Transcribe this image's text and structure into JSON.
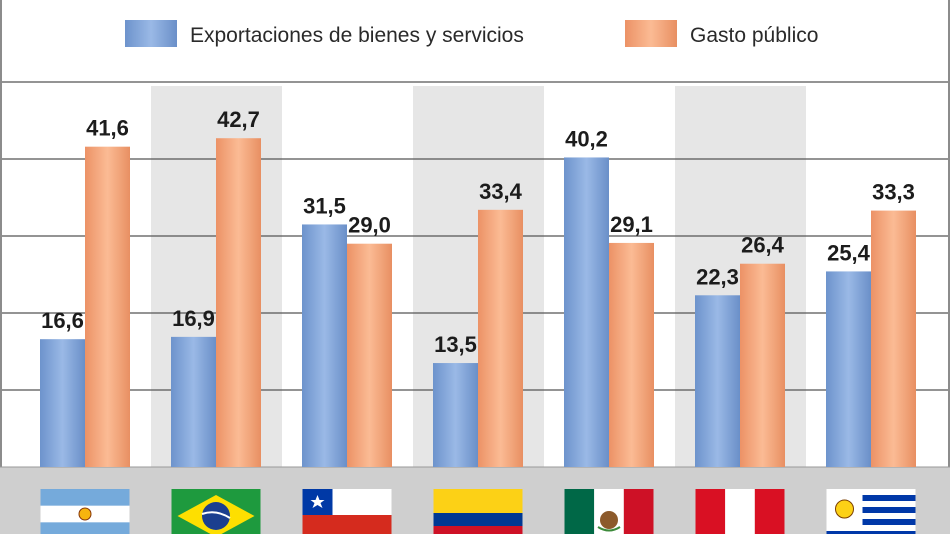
{
  "chart_data": {
    "type": "bar",
    "categories": [
      "Argentina",
      "Brasil",
      "Chile",
      "Colombia",
      "México",
      "Perú",
      "Uruguay"
    ],
    "series": [
      {
        "name": "Exportaciones de bienes y servicios",
        "values": [
          16.6,
          16.9,
          31.5,
          13.5,
          40.2,
          22.3,
          25.4
        ],
        "labels": [
          "16,6",
          "16,9",
          "31,5",
          "13,5",
          "40,2",
          "22,3",
          "25,4"
        ],
        "color": "#7fa3d8"
      },
      {
        "name": "Gasto público",
        "values": [
          41.6,
          42.7,
          29.0,
          33.4,
          29.1,
          26.4,
          33.3
        ],
        "labels": [
          "41,6",
          "42,7",
          "29,0",
          "33,4",
          "29,1",
          "26,4",
          "33,3"
        ],
        "color": "#f4a47a"
      }
    ],
    "ylim": [
      0,
      50
    ],
    "grid": true,
    "legend_position": "top",
    "flags": [
      "argentina-flag",
      "brazil-flag",
      "chile-flag",
      "colombia-flag",
      "mexico-flag",
      "peru-flag",
      "uruguay-flag"
    ]
  },
  "colors": {
    "column_shade": "#e6e6e6",
    "gridline": "#555555",
    "baseline_band": "#cfcfcf"
  }
}
